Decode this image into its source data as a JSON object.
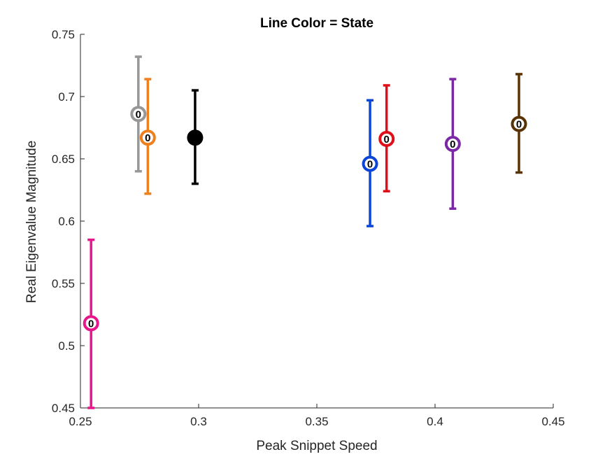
{
  "chart_data": {
    "type": "scatter",
    "title": "Line Color = State",
    "xlabel": "Peak Snippet Speed",
    "ylabel": "Real Eigenvalue Magnitude",
    "xlim": [
      0.25,
      0.45
    ],
    "ylim": [
      0.45,
      0.75
    ],
    "xticks": [
      "0.25",
      "0.3",
      "0.35",
      "0.4",
      "0.45"
    ],
    "yticks": [
      "0.45",
      "0.5",
      "0.55",
      "0.6",
      "0.65",
      "0.7",
      "0.75"
    ],
    "grid": false,
    "marker_glyph": "0",
    "points": [
      {
        "x": 0.2545,
        "y": 0.518,
        "low": 0.45,
        "high": 0.585,
        "color": "#e8168c",
        "glyph": true
      },
      {
        "x": 0.2745,
        "y": 0.686,
        "low": 0.64,
        "high": 0.732,
        "color": "#979797",
        "glyph": true
      },
      {
        "x": 0.2785,
        "y": 0.667,
        "low": 0.622,
        "high": 0.714,
        "color": "#f07f1e",
        "glyph": true
      },
      {
        "x": 0.2985,
        "y": 0.667,
        "low": 0.63,
        "high": 0.705,
        "color": "#000000",
        "glyph": false
      },
      {
        "x": 0.3725,
        "y": 0.646,
        "low": 0.596,
        "high": 0.697,
        "color": "#0a45d8",
        "glyph": true
      },
      {
        "x": 0.3795,
        "y": 0.666,
        "low": 0.624,
        "high": 0.709,
        "color": "#df0f1a",
        "glyph": true
      },
      {
        "x": 0.4075,
        "y": 0.662,
        "low": 0.61,
        "high": 0.714,
        "color": "#7b28a6",
        "glyph": true
      },
      {
        "x": 0.4355,
        "y": 0.678,
        "low": 0.639,
        "high": 0.718,
        "color": "#5a3305",
        "glyph": true
      }
    ]
  }
}
